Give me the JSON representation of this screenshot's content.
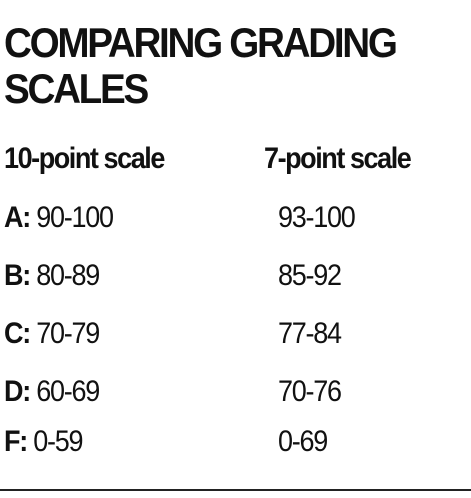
{
  "title": "COMPARING GRADING SCALES",
  "headers": {
    "ten_point": "10-point scale",
    "seven_point": "7-point scale"
  },
  "rows": [
    {
      "grade": "A:",
      "ten_point": "90-100",
      "seven_point": "93-100"
    },
    {
      "grade": "B:",
      "ten_point": "80-89",
      "seven_point": "85-92"
    },
    {
      "grade": "C:",
      "ten_point": "70-79",
      "seven_point": "77-84"
    },
    {
      "grade": "D:",
      "ten_point": "60-69",
      "seven_point": "70-76"
    },
    {
      "grade": "F:",
      "ten_point": "0-59",
      "seven_point": "0-69"
    }
  ]
}
